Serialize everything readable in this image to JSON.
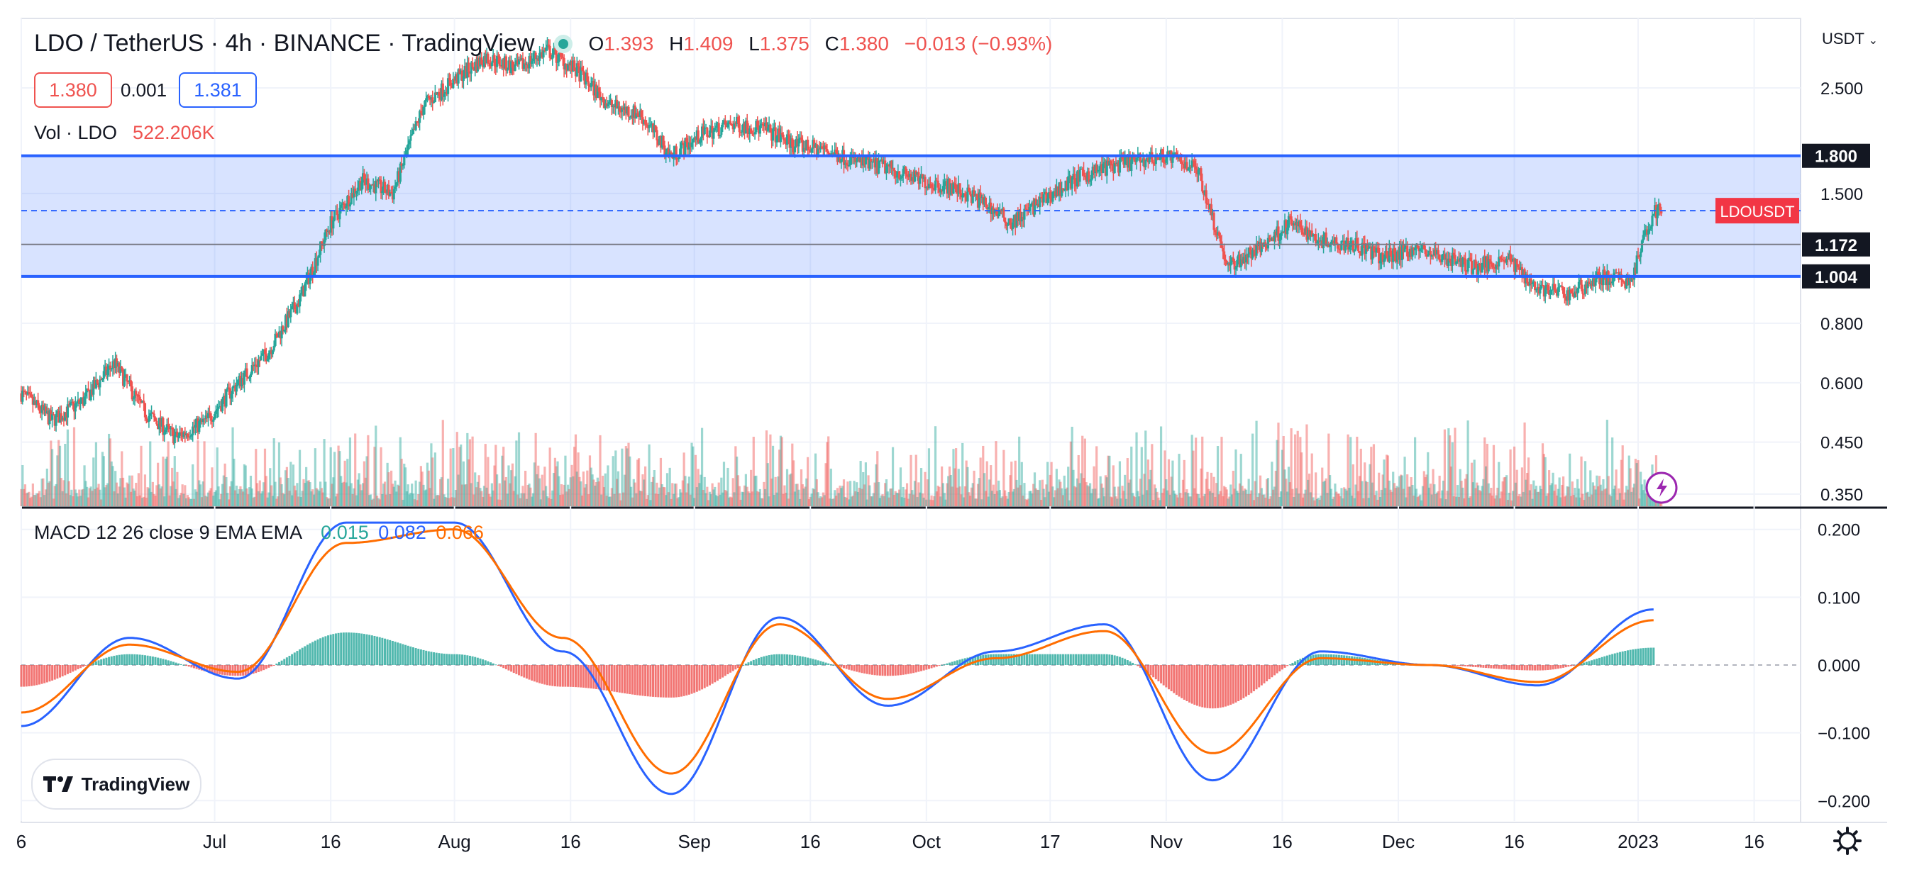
{
  "header": {
    "symbol": "LDO / TetherUS · 4h · BINANCE · TradingView",
    "open_label": "O",
    "open": "1.393",
    "high_label": "H",
    "high": "1.409",
    "low_label": "L",
    "low": "1.375",
    "close_label": "C",
    "close": "1.380",
    "change": "−0.013 (−0.93%)",
    "bid": "1.380",
    "spread": "0.001",
    "ask": "1.381"
  },
  "volume": {
    "label": "Vol · LDO",
    "value": "522.206K"
  },
  "macd": {
    "label": "MACD 12 26 close 9 EMA EMA",
    "histogram": "0.015",
    "macd": "0.082",
    "signal": "0.066"
  },
  "currency_label": "USDT",
  "brand": "TradingView",
  "colors": {
    "up": "#26a69a",
    "down": "#ef5350",
    "macd_line": "#2962ff",
    "signal_line": "#ff6d00",
    "range_band": "#2962ff",
    "price_tag": "#f23645",
    "level_tag": "#131722"
  },
  "chart_data": [
    {
      "type": "candlestick",
      "title": "LDO / TetherUS · 4h · BINANCE · TradingView",
      "y_scale": "log",
      "y_ticks": [
        0.35,
        0.45,
        0.6,
        0.8,
        1.0,
        1.5,
        1.8,
        2.5
      ],
      "y_tick_labels": [
        "0.350",
        "0.450",
        "0.600",
        "0.800",
        "1.004",
        "1.500",
        "1.800",
        "2.500"
      ],
      "x_tick_labels": [
        "6",
        "Jul",
        "16",
        "Aug",
        "16",
        "Sep",
        "16",
        "Oct",
        "17",
        "Nov",
        "16",
        "Dec",
        "16",
        "2023",
        "16"
      ],
      "ylim": [
        0.33,
        3.5
      ],
      "annotations": [
        {
          "label": "1.800",
          "value": 1.8,
          "style": "horizontal line"
        },
        {
          "label": "1.004",
          "value": 1.004,
          "style": "horizontal line"
        },
        {
          "label": "1.172",
          "value": 1.172,
          "style": "horizontal line"
        },
        {
          "label": "LDOUSDT",
          "value": 1.38,
          "style": "last price"
        }
      ],
      "close_trend": {
        "x": [
          "2022-06-06",
          "2022-06-10",
          "2022-06-14",
          "2022-06-18",
          "2022-06-22",
          "2022-06-26",
          "2022-06-30",
          "2022-07-04",
          "2022-07-08",
          "2022-07-12",
          "2022-07-16",
          "2022-07-20",
          "2022-07-24",
          "2022-07-28",
          "2022-08-01",
          "2022-08-05",
          "2022-08-09",
          "2022-08-13",
          "2022-08-17",
          "2022-08-21",
          "2022-08-25",
          "2022-08-29",
          "2022-09-02",
          "2022-09-06",
          "2022-09-10",
          "2022-09-14",
          "2022-09-18",
          "2022-09-22",
          "2022-09-26",
          "2022-09-30",
          "2022-10-04",
          "2022-10-08",
          "2022-10-12",
          "2022-10-16",
          "2022-10-20",
          "2022-10-24",
          "2022-10-28",
          "2022-11-01",
          "2022-11-05",
          "2022-11-09",
          "2022-11-13",
          "2022-11-17",
          "2022-11-21",
          "2022-11-25",
          "2022-11-29",
          "2022-12-03",
          "2022-12-07",
          "2022-12-11",
          "2022-12-15",
          "2022-12-19",
          "2022-12-23",
          "2022-12-27",
          "2022-12-31",
          "2023-01-03"
        ],
        "y": [
          0.57,
          0.5,
          0.55,
          0.66,
          0.52,
          0.46,
          0.5,
          0.6,
          0.7,
          0.9,
          1.3,
          1.6,
          1.5,
          2.3,
          2.6,
          2.9,
          2.75,
          3.0,
          2.7,
          2.3,
          2.2,
          1.8,
          2.0,
          2.1,
          2.05,
          1.9,
          1.85,
          1.75,
          1.7,
          1.6,
          1.55,
          1.45,
          1.3,
          1.45,
          1.6,
          1.7,
          1.75,
          1.8,
          1.7,
          1.05,
          1.15,
          1.3,
          1.2,
          1.18,
          1.1,
          1.15,
          1.1,
          1.05,
          1.1,
          0.95,
          0.92,
          1.0,
          0.98,
          1.38
        ]
      },
      "volume_panel": {
        "label": "Vol · LDO",
        "last": "522.206K"
      }
    },
    {
      "type": "line",
      "title": "MACD 12 26 close 9 EMA EMA",
      "y_ticks": [
        -0.2,
        -0.1,
        0.0,
        0.1,
        0.2
      ],
      "y_tick_labels": [
        "−0.200",
        "−0.100",
        "0.000",
        "0.100",
        "0.200"
      ],
      "ylim": [
        -0.23,
        0.23
      ],
      "x": [
        "2022-06-06",
        "2022-06-20",
        "2022-07-04",
        "2022-07-18",
        "2022-08-01",
        "2022-08-15",
        "2022-08-29",
        "2022-09-12",
        "2022-09-26",
        "2022-10-10",
        "2022-10-24",
        "2022-11-07",
        "2022-11-21",
        "2022-12-05",
        "2022-12-19",
        "2023-01-03"
      ],
      "series": [
        {
          "name": "MACD",
          "values": [
            -0.09,
            0.04,
            -0.02,
            0.21,
            0.21,
            0.02,
            -0.19,
            0.07,
            -0.06,
            0.02,
            0.06,
            -0.17,
            0.02,
            0.0,
            -0.03,
            0.082
          ]
        },
        {
          "name": "Signal",
          "values": [
            -0.07,
            0.03,
            -0.01,
            0.18,
            0.2,
            0.04,
            -0.16,
            0.06,
            -0.05,
            0.01,
            0.05,
            -0.13,
            0.01,
            0.0,
            -0.025,
            0.066
          ]
        }
      ]
    }
  ]
}
